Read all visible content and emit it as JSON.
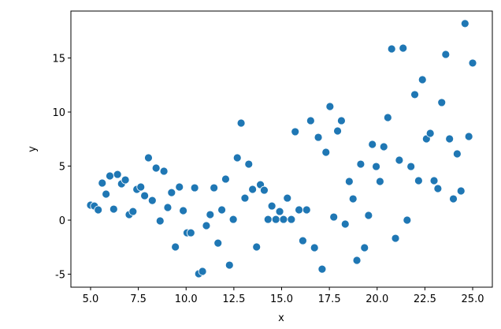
{
  "chart_data": {
    "type": "scatter",
    "xlabel": "x",
    "ylabel": "y",
    "color": "#1f77b4",
    "xlim": [
      3.97,
      26.03
    ],
    "ylim": [
      -6.2,
      19.34
    ],
    "xticks": [
      {
        "value": 5,
        "label": "5.0"
      },
      {
        "value": 7.5,
        "label": "7.5"
      },
      {
        "value": 10,
        "label": "10.0"
      },
      {
        "value": 12.5,
        "label": "12.5"
      },
      {
        "value": 15,
        "label": "15.0"
      },
      {
        "value": 17.5,
        "label": "17.5"
      },
      {
        "value": 20,
        "label": "20.0"
      },
      {
        "value": 22.5,
        "label": "22.5"
      },
      {
        "value": 25,
        "label": "25.0"
      }
    ],
    "yticks": [
      -5,
      0,
      5,
      10,
      15
    ],
    "x": [
      5.0,
      5.2,
      5.4,
      5.61,
      5.81,
      6.01,
      6.21,
      6.41,
      6.62,
      6.82,
      7.02,
      7.22,
      7.42,
      7.63,
      7.83,
      8.03,
      8.23,
      8.43,
      8.64,
      8.84,
      9.04,
      9.24,
      9.44,
      9.65,
      9.85,
      10.05,
      10.25,
      10.45,
      10.66,
      10.86,
      11.06,
      11.26,
      11.46,
      11.67,
      11.87,
      12.07,
      12.27,
      12.47,
      12.68,
      12.88,
      13.08,
      13.28,
      13.48,
      13.69,
      13.89,
      14.09,
      14.29,
      14.49,
      14.7,
      14.9,
      15.1,
      15.3,
      15.51,
      15.71,
      15.91,
      16.11,
      16.31,
      16.52,
      16.72,
      16.92,
      17.12,
      17.32,
      17.53,
      17.73,
      17.93,
      18.13,
      18.33,
      18.54,
      18.74,
      18.94,
      19.14,
      19.34,
      19.55,
      19.75,
      19.95,
      20.15,
      20.35,
      20.56,
      20.76,
      20.96,
      21.16,
      21.36,
      21.57,
      21.77,
      21.97,
      22.17,
      22.37,
      22.58,
      22.78,
      22.98,
      23.18,
      23.38,
      23.59,
      23.79,
      23.99,
      24.19,
      24.39,
      24.6,
      24.8,
      25.0
    ],
    "values": [
      1.39,
      1.31,
      0.95,
      3.43,
      2.41,
      4.09,
      1.02,
      4.23,
      3.36,
      3.72,
      0.51,
      0.8,
      2.85,
      3.07,
      2.26,
      5.77,
      1.82,
      4.82,
      -0.07,
      4.53,
      1.17,
      2.55,
      -2.48,
      3.07,
      0.88,
      -1.17,
      -1.17,
      2.99,
      -4.96,
      -4.74,
      -0.51,
      0.51,
      2.99,
      -2.12,
      0.95,
      3.8,
      -4.16,
      0.07,
      5.77,
      8.98,
      2.04,
      5.18,
      2.85,
      -2.48,
      3.28,
      2.77,
      0.07,
      1.31,
      0.07,
      0.8,
      0.07,
      2.04,
      0.07,
      8.18,
      0.95,
      -1.9,
      0.95,
      9.2,
      -2.55,
      7.66,
      -4.53,
      6.28,
      10.51,
      0.29,
      8.25,
      9.2,
      -0.36,
      3.58,
      1.97,
      -3.72,
      5.18,
      -2.55,
      0.44,
      7.01,
      4.96,
      3.58,
      6.79,
      9.49,
      15.84,
      -1.68,
      5.55,
      15.91,
      0,
      4.96,
      11.61,
      3.65,
      12.99,
      7.52,
      8.03,
      3.65,
      2.92,
      10.88,
      15.33,
      7.52,
      1.97,
      6.13,
      2.7,
      18.18,
      7.74,
      14.53
    ]
  }
}
